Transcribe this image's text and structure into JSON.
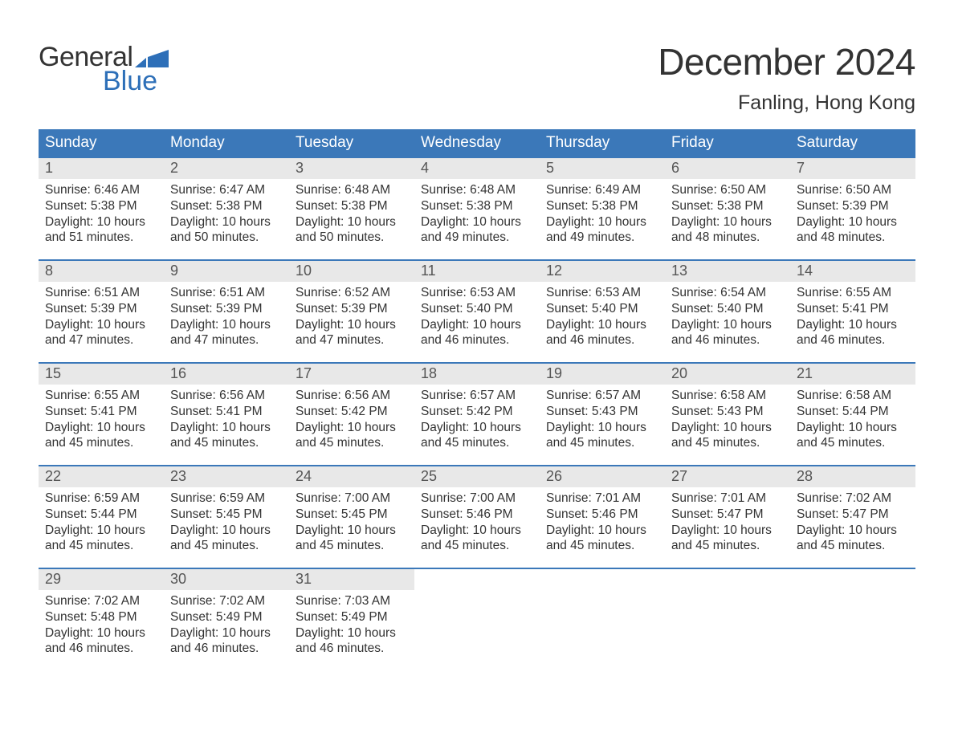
{
  "brand": {
    "line1": "General",
    "line2": "Blue"
  },
  "title": "December 2024",
  "location": "Fanling, Hong Kong",
  "colors": {
    "header_bg": "#3b78b9",
    "header_text": "#ffffff",
    "daynum_bg": "#e8e8e8",
    "week_border": "#3b78b9",
    "logo_blue": "#2d6fb8",
    "text": "#333333",
    "background": "#ffffff"
  },
  "typography": {
    "title_fontsize": 46,
    "location_fontsize": 25,
    "header_fontsize": 19,
    "daynum_fontsize": 18,
    "body_fontsize": 15.5,
    "logo_fontsize": 34
  },
  "layout": {
    "columns": 7,
    "rows": 5,
    "cell_min_height": 126
  },
  "weekdays": [
    "Sunday",
    "Monday",
    "Tuesday",
    "Wednesday",
    "Thursday",
    "Friday",
    "Saturday"
  ],
  "days": [
    {
      "n": 1,
      "sunrise": "Sunrise: 6:46 AM",
      "sunset": "Sunset: 5:38 PM",
      "daylight1": "Daylight: 10 hours",
      "daylight2": "and 51 minutes."
    },
    {
      "n": 2,
      "sunrise": "Sunrise: 6:47 AM",
      "sunset": "Sunset: 5:38 PM",
      "daylight1": "Daylight: 10 hours",
      "daylight2": "and 50 minutes."
    },
    {
      "n": 3,
      "sunrise": "Sunrise: 6:48 AM",
      "sunset": "Sunset: 5:38 PM",
      "daylight1": "Daylight: 10 hours",
      "daylight2": "and 50 minutes."
    },
    {
      "n": 4,
      "sunrise": "Sunrise: 6:48 AM",
      "sunset": "Sunset: 5:38 PM",
      "daylight1": "Daylight: 10 hours",
      "daylight2": "and 49 minutes."
    },
    {
      "n": 5,
      "sunrise": "Sunrise: 6:49 AM",
      "sunset": "Sunset: 5:38 PM",
      "daylight1": "Daylight: 10 hours",
      "daylight2": "and 49 minutes."
    },
    {
      "n": 6,
      "sunrise": "Sunrise: 6:50 AM",
      "sunset": "Sunset: 5:38 PM",
      "daylight1": "Daylight: 10 hours",
      "daylight2": "and 48 minutes."
    },
    {
      "n": 7,
      "sunrise": "Sunrise: 6:50 AM",
      "sunset": "Sunset: 5:39 PM",
      "daylight1": "Daylight: 10 hours",
      "daylight2": "and 48 minutes."
    },
    {
      "n": 8,
      "sunrise": "Sunrise: 6:51 AM",
      "sunset": "Sunset: 5:39 PM",
      "daylight1": "Daylight: 10 hours",
      "daylight2": "and 47 minutes."
    },
    {
      "n": 9,
      "sunrise": "Sunrise: 6:51 AM",
      "sunset": "Sunset: 5:39 PM",
      "daylight1": "Daylight: 10 hours",
      "daylight2": "and 47 minutes."
    },
    {
      "n": 10,
      "sunrise": "Sunrise: 6:52 AM",
      "sunset": "Sunset: 5:39 PM",
      "daylight1": "Daylight: 10 hours",
      "daylight2": "and 47 minutes."
    },
    {
      "n": 11,
      "sunrise": "Sunrise: 6:53 AM",
      "sunset": "Sunset: 5:40 PM",
      "daylight1": "Daylight: 10 hours",
      "daylight2": "and 46 minutes."
    },
    {
      "n": 12,
      "sunrise": "Sunrise: 6:53 AM",
      "sunset": "Sunset: 5:40 PM",
      "daylight1": "Daylight: 10 hours",
      "daylight2": "and 46 minutes."
    },
    {
      "n": 13,
      "sunrise": "Sunrise: 6:54 AM",
      "sunset": "Sunset: 5:40 PM",
      "daylight1": "Daylight: 10 hours",
      "daylight2": "and 46 minutes."
    },
    {
      "n": 14,
      "sunrise": "Sunrise: 6:55 AM",
      "sunset": "Sunset: 5:41 PM",
      "daylight1": "Daylight: 10 hours",
      "daylight2": "and 46 minutes."
    },
    {
      "n": 15,
      "sunrise": "Sunrise: 6:55 AM",
      "sunset": "Sunset: 5:41 PM",
      "daylight1": "Daylight: 10 hours",
      "daylight2": "and 45 minutes."
    },
    {
      "n": 16,
      "sunrise": "Sunrise: 6:56 AM",
      "sunset": "Sunset: 5:41 PM",
      "daylight1": "Daylight: 10 hours",
      "daylight2": "and 45 minutes."
    },
    {
      "n": 17,
      "sunrise": "Sunrise: 6:56 AM",
      "sunset": "Sunset: 5:42 PM",
      "daylight1": "Daylight: 10 hours",
      "daylight2": "and 45 minutes."
    },
    {
      "n": 18,
      "sunrise": "Sunrise: 6:57 AM",
      "sunset": "Sunset: 5:42 PM",
      "daylight1": "Daylight: 10 hours",
      "daylight2": "and 45 minutes."
    },
    {
      "n": 19,
      "sunrise": "Sunrise: 6:57 AM",
      "sunset": "Sunset: 5:43 PM",
      "daylight1": "Daylight: 10 hours",
      "daylight2": "and 45 minutes."
    },
    {
      "n": 20,
      "sunrise": "Sunrise: 6:58 AM",
      "sunset": "Sunset: 5:43 PM",
      "daylight1": "Daylight: 10 hours",
      "daylight2": "and 45 minutes."
    },
    {
      "n": 21,
      "sunrise": "Sunrise: 6:58 AM",
      "sunset": "Sunset: 5:44 PM",
      "daylight1": "Daylight: 10 hours",
      "daylight2": "and 45 minutes."
    },
    {
      "n": 22,
      "sunrise": "Sunrise: 6:59 AM",
      "sunset": "Sunset: 5:44 PM",
      "daylight1": "Daylight: 10 hours",
      "daylight2": "and 45 minutes."
    },
    {
      "n": 23,
      "sunrise": "Sunrise: 6:59 AM",
      "sunset": "Sunset: 5:45 PM",
      "daylight1": "Daylight: 10 hours",
      "daylight2": "and 45 minutes."
    },
    {
      "n": 24,
      "sunrise": "Sunrise: 7:00 AM",
      "sunset": "Sunset: 5:45 PM",
      "daylight1": "Daylight: 10 hours",
      "daylight2": "and 45 minutes."
    },
    {
      "n": 25,
      "sunrise": "Sunrise: 7:00 AM",
      "sunset": "Sunset: 5:46 PM",
      "daylight1": "Daylight: 10 hours",
      "daylight2": "and 45 minutes."
    },
    {
      "n": 26,
      "sunrise": "Sunrise: 7:01 AM",
      "sunset": "Sunset: 5:46 PM",
      "daylight1": "Daylight: 10 hours",
      "daylight2": "and 45 minutes."
    },
    {
      "n": 27,
      "sunrise": "Sunrise: 7:01 AM",
      "sunset": "Sunset: 5:47 PM",
      "daylight1": "Daylight: 10 hours",
      "daylight2": "and 45 minutes."
    },
    {
      "n": 28,
      "sunrise": "Sunrise: 7:02 AM",
      "sunset": "Sunset: 5:47 PM",
      "daylight1": "Daylight: 10 hours",
      "daylight2": "and 45 minutes."
    },
    {
      "n": 29,
      "sunrise": "Sunrise: 7:02 AM",
      "sunset": "Sunset: 5:48 PM",
      "daylight1": "Daylight: 10 hours",
      "daylight2": "and 46 minutes."
    },
    {
      "n": 30,
      "sunrise": "Sunrise: 7:02 AM",
      "sunset": "Sunset: 5:49 PM",
      "daylight1": "Daylight: 10 hours",
      "daylight2": "and 46 minutes."
    },
    {
      "n": 31,
      "sunrise": "Sunrise: 7:03 AM",
      "sunset": "Sunset: 5:49 PM",
      "daylight1": "Daylight: 10 hours",
      "daylight2": "and 46 minutes."
    }
  ],
  "last_row_trailing_empty": 4
}
